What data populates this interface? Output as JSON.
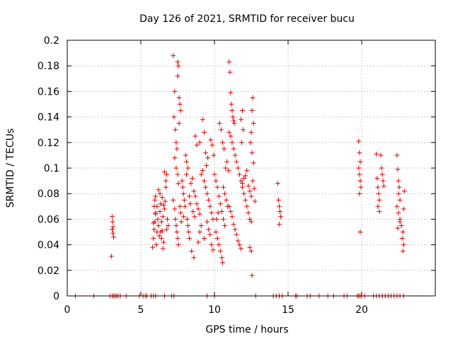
{
  "chart_data": {
    "type": "scatter",
    "title": "Day 126 of 2021, SRMTID for receiver bucu",
    "xlabel": "GPS time / hours",
    "ylabel": "SRMTID / TECUs",
    "xlim": [
      0,
      25
    ],
    "ylim": [
      0,
      0.2
    ],
    "xticks": [
      0,
      5,
      10,
      15,
      20
    ],
    "xtick_labels": [
      "0",
      "5",
      "10",
      "15",
      "20"
    ],
    "yticks": [
      0,
      0.02,
      0.04,
      0.06,
      0.08,
      0.1,
      0.12,
      0.14,
      0.16,
      0.18,
      0.2
    ],
    "ytick_labels": [
      "0",
      "0.02",
      "0.04",
      "0.06",
      "0.08",
      "0.1",
      "0.12",
      "0.14",
      "0.16",
      "0.18",
      "0.2"
    ],
    "grid": true,
    "marker": "+",
    "color": "#e00000",
    "series": [
      {
        "name": "SRMTID",
        "points": [
          [
            0.55,
            0
          ],
          [
            1.8,
            0
          ],
          [
            2.9,
            0
          ],
          [
            3.05,
            0
          ],
          [
            3.15,
            0
          ],
          [
            3.25,
            0
          ],
          [
            3.35,
            0
          ],
          [
            3.45,
            0
          ],
          [
            3.6,
            0
          ],
          [
            4.0,
            0
          ],
          [
            4.9,
            0
          ],
          [
            5.15,
            0
          ],
          [
            5.3,
            0
          ],
          [
            5.4,
            0
          ],
          [
            5.7,
            0
          ],
          [
            5.85,
            0
          ],
          [
            6.0,
            0
          ],
          [
            6.6,
            0
          ],
          [
            7.1,
            0
          ],
          [
            7.25,
            0
          ],
          [
            9.5,
            0
          ],
          [
            10.0,
            0
          ],
          [
            12.8,
            0
          ],
          [
            14.0,
            0
          ],
          [
            14.2,
            0
          ],
          [
            14.4,
            0
          ],
          [
            14.6,
            0
          ],
          [
            15.5,
            0
          ],
          [
            15.6,
            0
          ],
          [
            16.3,
            0
          ],
          [
            16.5,
            0
          ],
          [
            17.1,
            0
          ],
          [
            17.7,
            0
          ],
          [
            18.1,
            0
          ],
          [
            18.8,
            0
          ],
          [
            19.0,
            0
          ],
          [
            19.7,
            0
          ],
          [
            19.8,
            0
          ],
          [
            19.9,
            0
          ],
          [
            20.0,
            0
          ],
          [
            20.2,
            0
          ],
          [
            20.8,
            0
          ],
          [
            21.0,
            0
          ],
          [
            21.2,
            0
          ],
          [
            21.4,
            0
          ],
          [
            21.6,
            0
          ],
          [
            21.8,
            0
          ],
          [
            22.0,
            0
          ],
          [
            22.2,
            0
          ],
          [
            22.4,
            0
          ],
          [
            22.6,
            0
          ],
          [
            22.85,
            0
          ],
          [
            3.0,
            0.031
          ],
          [
            3.05,
            0.062
          ],
          [
            3.08,
            0.058
          ],
          [
            3.12,
            0.054
          ],
          [
            3.1,
            0.049
          ],
          [
            3.15,
            0.046
          ],
          [
            3.05,
            0.052
          ],
          [
            5.8,
            0.038
          ],
          [
            5.85,
            0.045
          ],
          [
            5.9,
            0.052
          ],
          [
            5.95,
            0.058
          ],
          [
            6.0,
            0.064
          ],
          [
            5.9,
            0.07
          ],
          [
            5.95,
            0.075
          ],
          [
            6.0,
            0.078
          ],
          [
            6.05,
            0.04
          ],
          [
            6.1,
            0.05
          ],
          [
            6.15,
            0.06
          ],
          [
            6.2,
            0.055
          ],
          [
            6.25,
            0.047
          ],
          [
            6.3,
            0.066
          ],
          [
            6.35,
            0.072
          ],
          [
            6.4,
            0.058
          ],
          [
            6.45,
            0.051
          ],
          [
            6.5,
            0.062
          ],
          [
            6.55,
            0.042
          ],
          [
            6.6,
            0.068
          ],
          [
            6.65,
            0.074
          ],
          [
            6.7,
            0.085
          ],
          [
            6.75,
            0.095
          ],
          [
            6.6,
            0.097
          ],
          [
            6.7,
            0.09
          ],
          [
            6.8,
            0.06
          ],
          [
            6.85,
            0.055
          ],
          [
            6.5,
            0.037
          ],
          [
            6.4,
            0.045
          ],
          [
            6.3,
            0.08
          ],
          [
            6.2,
            0.083
          ],
          [
            6.1,
            0.07
          ],
          [
            6.0,
            0.065
          ],
          [
            5.85,
            0.057
          ],
          [
            6.45,
            0.077
          ],
          [
            6.55,
            0.071
          ],
          [
            6.75,
            0.052
          ],
          [
            6.35,
            0.05
          ],
          [
            7.2,
            0.188
          ],
          [
            7.3,
            0.16
          ],
          [
            7.25,
            0.14
          ],
          [
            7.35,
            0.13
          ],
          [
            7.4,
            0.12
          ],
          [
            7.45,
            0.115
          ],
          [
            7.5,
            0.172
          ],
          [
            7.55,
            0.18
          ],
          [
            7.5,
            0.183
          ],
          [
            7.6,
            0.155
          ],
          [
            7.65,
            0.15
          ],
          [
            7.7,
            0.145
          ],
          [
            7.6,
            0.135
          ],
          [
            7.3,
            0.108
          ],
          [
            7.4,
            0.1
          ],
          [
            7.5,
            0.095
          ],
          [
            7.55,
            0.088
          ],
          [
            7.2,
            0.075
          ],
          [
            7.3,
            0.068
          ],
          [
            7.35,
            0.06
          ],
          [
            7.4,
            0.055
          ],
          [
            7.45,
            0.05
          ],
          [
            7.5,
            0.045
          ],
          [
            7.55,
            0.04
          ],
          [
            7.65,
            0.07
          ],
          [
            7.7,
            0.065
          ],
          [
            7.8,
            0.09
          ],
          [
            7.85,
            0.085
          ],
          [
            7.9,
            0.08
          ],
          [
            7.95,
            0.075
          ],
          [
            8.0,
            0.07
          ],
          [
            8.05,
            0.11
          ],
          [
            8.1,
            0.105
          ],
          [
            8.15,
            0.06
          ],
          [
            8.2,
            0.055
          ],
          [
            8.25,
            0.05
          ],
          [
            8.3,
            0.045
          ],
          [
            8.4,
            0.088
          ],
          [
            8.5,
            0.092
          ],
          [
            8.6,
            0.082
          ],
          [
            8.7,
            0.078
          ],
          [
            8.8,
            0.072
          ],
          [
            8.9,
            0.068
          ],
          [
            9.0,
            0.064
          ],
          [
            8.45,
            0.035
          ],
          [
            8.6,
            0.03
          ],
          [
            8.7,
            0.125
          ],
          [
            8.8,
            0.118
          ],
          [
            9.0,
            0.12
          ],
          [
            9.1,
            0.095
          ],
          [
            9.2,
            0.098
          ],
          [
            9.3,
            0.09
          ],
          [
            9.4,
            0.085
          ],
          [
            9.5,
            0.08
          ],
          [
            9.6,
            0.075
          ],
          [
            9.7,
            0.07
          ],
          [
            9.8,
            0.065
          ],
          [
            9.9,
            0.06
          ],
          [
            9.2,
            0.138
          ],
          [
            9.3,
            0.128
          ],
          [
            9.4,
            0.112
          ],
          [
            9.5,
            0.058
          ],
          [
            9.6,
            0.052
          ],
          [
            9.7,
            0.048
          ],
          [
            9.8,
            0.04
          ],
          [
            9.9,
            0.036
          ],
          [
            9.3,
            0.045
          ],
          [
            9.1,
            0.055
          ],
          [
            9.0,
            0.05
          ],
          [
            8.9,
            0.042
          ],
          [
            8.1,
            0.095
          ],
          [
            8.2,
            0.1
          ],
          [
            8.3,
            0.078
          ],
          [
            8.35,
            0.072
          ],
          [
            7.9,
            0.062
          ],
          [
            7.75,
            0.058
          ],
          [
            8.55,
            0.066
          ],
          [
            8.65,
            0.062
          ],
          [
            9.45,
            0.102
          ],
          [
            9.55,
            0.108
          ],
          [
            9.75,
            0.122
          ],
          [
            9.85,
            0.118
          ],
          [
            9.95,
            0.11
          ],
          [
            10.0,
            0.095
          ],
          [
            10.1,
            0.09
          ],
          [
            10.2,
            0.085
          ],
          [
            10.3,
            0.078
          ],
          [
            10.4,
            0.072
          ],
          [
            10.5,
            0.066
          ],
          [
            10.6,
            0.06
          ],
          [
            10.7,
            0.055
          ],
          [
            10.1,
            0.05
          ],
          [
            10.2,
            0.045
          ],
          [
            10.3,
            0.04
          ],
          [
            10.4,
            0.035
          ],
          [
            10.5,
            0.03
          ],
          [
            10.55,
            0.026
          ],
          [
            10.35,
            0.135
          ],
          [
            10.45,
            0.13
          ],
          [
            10.55,
            0.12
          ],
          [
            10.65,
            0.115
          ],
          [
            10.75,
            0.1
          ],
          [
            10.85,
            0.105
          ],
          [
            10.95,
            0.098
          ],
          [
            11.0,
            0.183
          ],
          [
            11.05,
            0.175
          ],
          [
            11.1,
            0.159
          ],
          [
            11.15,
            0.15
          ],
          [
            11.2,
            0.145
          ],
          [
            11.25,
            0.14
          ],
          [
            11.3,
            0.137
          ],
          [
            11.35,
            0.135
          ],
          [
            11.0,
            0.128
          ],
          [
            11.1,
            0.125
          ],
          [
            11.2,
            0.12
          ],
          [
            11.3,
            0.115
          ],
          [
            11.4,
            0.11
          ],
          [
            11.5,
            0.105
          ],
          [
            11.6,
            0.1
          ],
          [
            11.7,
            0.095
          ],
          [
            11.8,
            0.09
          ],
          [
            11.9,
            0.085
          ],
          [
            12.0,
            0.08
          ],
          [
            12.1,
            0.075
          ],
          [
            12.2,
            0.07
          ],
          [
            12.3,
            0.065
          ],
          [
            12.4,
            0.06
          ],
          [
            12.5,
            0.058
          ],
          [
            11.0,
            0.07
          ],
          [
            11.1,
            0.066
          ],
          [
            11.2,
            0.062
          ],
          [
            11.3,
            0.056
          ],
          [
            11.4,
            0.052
          ],
          [
            11.5,
            0.048
          ],
          [
            11.6,
            0.043
          ],
          [
            11.7,
            0.04
          ],
          [
            11.8,
            0.037
          ],
          [
            11.9,
            0.088
          ],
          [
            12.0,
            0.092
          ],
          [
            12.1,
            0.094
          ],
          [
            12.2,
            0.098
          ],
          [
            12.3,
            0.086
          ],
          [
            12.4,
            0.082
          ],
          [
            12.5,
            0.078
          ],
          [
            12.6,
            0.09
          ],
          [
            12.7,
            0.084
          ],
          [
            12.75,
            0.074
          ],
          [
            12.6,
            0.155
          ],
          [
            12.55,
            0.145
          ],
          [
            12.65,
            0.135
          ],
          [
            12.5,
            0.128
          ],
          [
            12.45,
            0.12
          ],
          [
            12.55,
            0.112
          ],
          [
            12.65,
            0.104
          ],
          [
            12.5,
            0.035
          ],
          [
            12.55,
            0.016
          ],
          [
            12.4,
            0.038
          ],
          [
            11.9,
            0.145
          ],
          [
            11.8,
            0.138
          ],
          [
            11.95,
            0.13
          ],
          [
            11.85,
            0.12
          ],
          [
            10.9,
            0.07
          ],
          [
            10.8,
            0.075
          ],
          [
            10.7,
            0.08
          ],
          [
            10.6,
            0.085
          ],
          [
            10.25,
            0.065
          ],
          [
            10.15,
            0.06
          ],
          [
            14.3,
            0.088
          ],
          [
            14.35,
            0.075
          ],
          [
            14.4,
            0.07
          ],
          [
            14.45,
            0.066
          ],
          [
            14.5,
            0.062
          ],
          [
            14.4,
            0.056
          ],
          [
            19.8,
            0.121
          ],
          [
            19.85,
            0.112
          ],
          [
            19.9,
            0.105
          ],
          [
            19.8,
            0.1
          ],
          [
            19.85,
            0.095
          ],
          [
            19.9,
            0.09
          ],
          [
            19.95,
            0.085
          ],
          [
            19.85,
            0.08
          ],
          [
            19.9,
            0.05
          ],
          [
            21.0,
            0.111
          ],
          [
            21.05,
            0.092
          ],
          [
            21.1,
            0.085
          ],
          [
            21.15,
            0.08
          ],
          [
            21.2,
            0.075
          ],
          [
            21.1,
            0.07
          ],
          [
            21.2,
            0.066
          ],
          [
            21.3,
            0.11
          ],
          [
            21.35,
            0.1
          ],
          [
            21.4,
            0.095
          ],
          [
            21.45,
            0.09
          ],
          [
            21.5,
            0.086
          ],
          [
            22.4,
            0.11
          ],
          [
            22.45,
            0.099
          ],
          [
            22.5,
            0.09
          ],
          [
            22.55,
            0.085
          ],
          [
            22.5,
            0.08
          ],
          [
            22.6,
            0.075
          ],
          [
            22.4,
            0.07
          ],
          [
            22.5,
            0.065
          ],
          [
            22.6,
            0.06
          ],
          [
            22.7,
            0.055
          ],
          [
            22.8,
            0.05
          ],
          [
            22.75,
            0.045
          ],
          [
            22.85,
            0.04
          ],
          [
            22.8,
            0.035
          ],
          [
            22.9,
            0.082
          ],
          [
            22.85,
            0.068
          ],
          [
            22.6,
            0.058
          ],
          [
            22.45,
            0.053
          ]
        ]
      }
    ]
  }
}
